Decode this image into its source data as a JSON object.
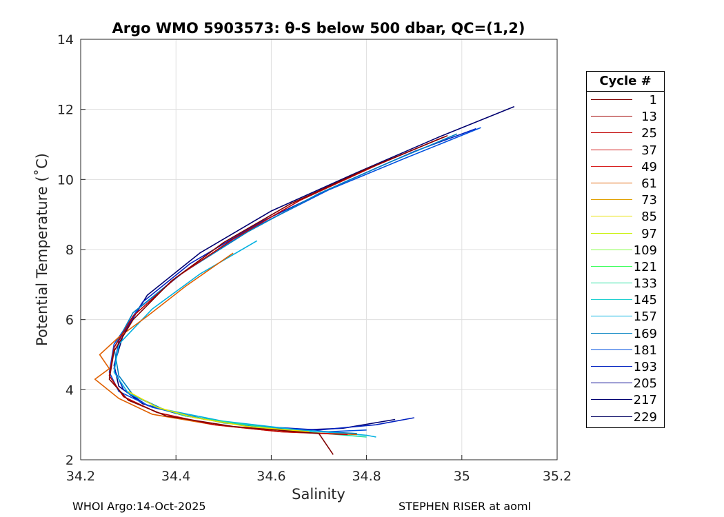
{
  "chart_data": {
    "type": "line",
    "title": "Argo WMO 5903573: θ-S below 500 dbar,  QC=(1,2)",
    "xlabel": "Salinity",
    "ylabel": "Potential Temperature (˚C)",
    "xlim": [
      34.2,
      35.2
    ],
    "ylim": [
      2,
      14
    ],
    "xticks": [
      "34.2",
      "34.4",
      "34.6",
      "34.8",
      "35",
      "35.2"
    ],
    "yticks": [
      "2",
      "4",
      "6",
      "8",
      "10",
      "12",
      "14"
    ],
    "grid": true,
    "legend": {
      "title": "Cycle #",
      "placement": "outside-right",
      "entries": [
        {
          "label": "1",
          "color": "#800000"
        },
        {
          "label": "13",
          "color": "#a00000"
        },
        {
          "label": "25",
          "color": "#c00000"
        },
        {
          "label": "37",
          "color": "#d01010"
        },
        {
          "label": "49",
          "color": "#d82020"
        },
        {
          "label": "61",
          "color": "#e06000"
        },
        {
          "label": "73",
          "color": "#e0a000"
        },
        {
          "label": "85",
          "color": "#e8e000"
        },
        {
          "label": "97",
          "color": "#c8f000"
        },
        {
          "label": "109",
          "color": "#80ff40"
        },
        {
          "label": "121",
          "color": "#40ff60"
        },
        {
          "label": "133",
          "color": "#20e0a0"
        },
        {
          "label": "145",
          "color": "#20d0d0"
        },
        {
          "label": "157",
          "color": "#00b0e0"
        },
        {
          "label": "169",
          "color": "#0080c0"
        },
        {
          "label": "181",
          "color": "#0050e0"
        },
        {
          "label": "193",
          "color": "#0020c0"
        },
        {
          "label": "205",
          "color": "#000090"
        },
        {
          "label": "217",
          "color": "#000070"
        },
        {
          "label": "229",
          "color": "#000060"
        }
      ]
    },
    "series": [
      {
        "color": "#000070",
        "x": [
          35.11,
          34.95,
          34.78,
          34.6,
          34.45,
          34.34,
          34.29,
          34.27,
          34.28,
          34.33,
          34.42,
          34.55,
          34.66,
          34.75,
          34.86
        ],
        "y": [
          12.08,
          11.2,
          10.2,
          9.1,
          7.9,
          6.7,
          5.6,
          4.7,
          4.1,
          3.6,
          3.25,
          3.0,
          2.85,
          2.9,
          3.15
        ]
      },
      {
        "color": "#0020c0",
        "x": [
          35.03,
          34.9,
          34.75,
          34.58,
          34.43,
          34.33,
          34.28,
          34.27,
          34.29,
          34.34,
          34.44,
          34.58,
          34.7,
          34.82,
          34.9
        ],
        "y": [
          11.45,
          10.8,
          9.9,
          8.8,
          7.6,
          6.5,
          5.4,
          4.6,
          4.0,
          3.55,
          3.2,
          2.95,
          2.85,
          3.0,
          3.2
        ]
      },
      {
        "color": "#0050e0",
        "x": [
          35.04,
          34.88,
          34.72,
          34.56,
          34.42,
          34.32,
          34.27,
          34.26,
          34.28,
          34.35,
          34.46,
          34.6,
          34.72,
          34.8
        ],
        "y": [
          11.48,
          10.6,
          9.7,
          8.6,
          7.4,
          6.3,
          5.3,
          4.5,
          3.95,
          3.5,
          3.15,
          2.9,
          2.8,
          2.85
        ]
      },
      {
        "color": "#0080c0",
        "x": [
          34.99,
          34.85,
          34.7,
          34.55,
          34.41,
          34.31,
          34.27,
          34.28,
          34.31,
          34.38,
          34.5,
          34.65,
          34.78
        ],
        "y": [
          11.3,
          10.5,
          9.6,
          8.5,
          7.3,
          6.2,
          5.2,
          4.4,
          3.85,
          3.4,
          3.05,
          2.85,
          2.75
        ]
      },
      {
        "color": "#00b0e0",
        "x": [
          34.57,
          34.45,
          34.35,
          34.28,
          34.27,
          34.3,
          34.37,
          34.5,
          34.66,
          34.8,
          34.82
        ],
        "y": [
          8.25,
          7.3,
          6.3,
          5.3,
          4.5,
          3.9,
          3.45,
          3.1,
          2.85,
          2.7,
          2.65
        ]
      },
      {
        "color": "#20e0a0",
        "x": [
          34.35,
          34.42,
          34.52,
          34.63,
          34.74,
          34.8
        ],
        "y": [
          3.55,
          3.25,
          3.05,
          2.85,
          2.72,
          2.65
        ]
      },
      {
        "color": "#e8e000",
        "x": [
          34.3,
          34.36,
          34.44,
          34.55,
          34.68
        ],
        "y": [
          3.95,
          3.5,
          3.2,
          2.95,
          2.8
        ]
      },
      {
        "color": "#e06000",
        "x": [
          34.52,
          34.42,
          34.34,
          34.28,
          34.24,
          34.26,
          34.23,
          34.28,
          34.35,
          34.48,
          34.62,
          34.78
        ],
        "y": [
          7.9,
          6.95,
          6.1,
          5.5,
          5.0,
          4.6,
          4.3,
          3.75,
          3.3,
          3.0,
          2.8,
          2.72
        ]
      },
      {
        "color": "#c00000",
        "x": [
          34.96,
          34.82,
          34.66,
          34.52,
          34.4,
          34.31,
          34.27,
          34.26,
          34.29,
          34.36,
          34.48,
          34.62,
          34.76
        ],
        "y": [
          11.2,
          10.4,
          9.4,
          8.3,
          7.2,
          6.1,
          5.2,
          4.4,
          3.8,
          3.35,
          3.0,
          2.8,
          2.72
        ]
      },
      {
        "color": "#800000",
        "x": [
          34.97,
          34.8,
          34.64,
          34.5,
          34.39,
          34.31,
          34.27,
          34.26,
          34.3,
          34.38,
          34.52,
          34.7,
          34.73
        ],
        "y": [
          11.25,
          10.3,
          9.3,
          8.2,
          7.1,
          6.0,
          5.1,
          4.3,
          3.7,
          3.25,
          2.95,
          2.75,
          2.15
        ]
      }
    ]
  },
  "footer": {
    "left": "WHOI Argo:14-Oct-2025",
    "right": "STEPHEN RISER at aoml"
  }
}
